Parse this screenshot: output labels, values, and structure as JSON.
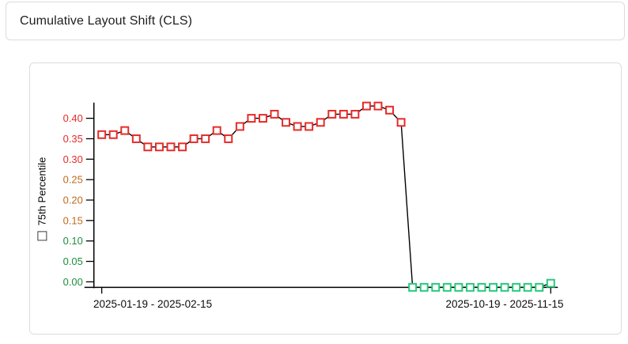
{
  "header": {
    "title": "Cumulative Layout Shift (CLS)"
  },
  "chart_card": {
    "y_axis_title": "75th Percentile",
    "series_checkbox_checked": false
  },
  "colors": {
    "line": "#000000",
    "marker_poor": "#e62b28",
    "marker_good": "#27c97c",
    "tick_label_poor": "#e62b28",
    "tick_label_needs_improvement": "#bf6a1f",
    "tick_label_good": "#1e8e3e",
    "axis": "#000000",
    "card_border": "#dcdcdc"
  },
  "chart_data": {
    "type": "line",
    "title": "Cumulative Layout Shift (CLS)",
    "ylabel": "75th Percentile",
    "series": [
      {
        "name": "75th Percentile",
        "values": [
          0.36,
          0.36,
          0.37,
          0.35,
          0.33,
          0.33,
          0.33,
          0.33,
          0.35,
          0.35,
          0.37,
          0.35,
          0.38,
          0.4,
          0.4,
          0.41,
          0.39,
          0.38,
          0.38,
          0.39,
          0.41,
          0.41,
          0.41,
          0.43,
          0.43,
          0.42,
          0.39,
          0.0,
          0.0,
          0.0,
          0.0,
          0.0,
          0.0,
          0.0,
          0.0,
          0.0,
          0.0,
          0.0,
          0.0,
          0.01
        ]
      }
    ],
    "x_tick_labels": [
      "2025-01-19 - 2025-02-15",
      "2025-10-19 - 2025-11-15"
    ],
    "x_tick_indices": [
      0,
      39
    ],
    "y_ticks": [
      0.0,
      0.05,
      0.1,
      0.15,
      0.2,
      0.25,
      0.3,
      0.35,
      0.4
    ],
    "ylim": [
      0,
      0.445
    ],
    "grid": false,
    "legend": "none",
    "marker": "open-square",
    "thresholds": {
      "good_max": 0.1,
      "needs_improvement_max": 0.25
    }
  }
}
